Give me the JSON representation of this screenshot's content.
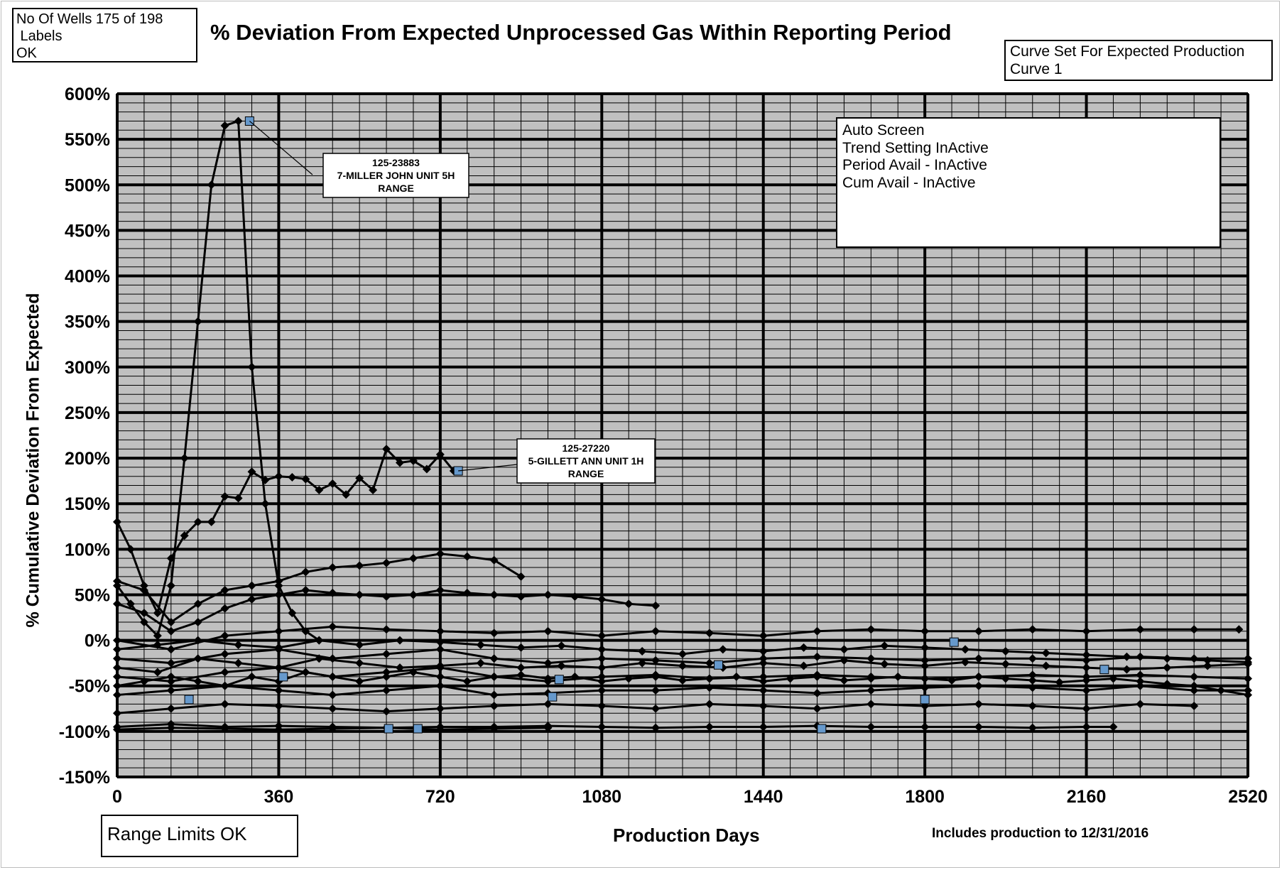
{
  "wells_box": {
    "lines": [
      "No Of Wells 175 of 198",
      " Labels",
      "OK"
    ]
  },
  "curve_box": {
    "lines": [
      "Curve Set For Expected Production",
      "Curve 1"
    ]
  },
  "auto_box": {
    "lines": [
      "Auto Screen",
      "Trend Setting InActive",
      "Period Avail - InActive",
      "",
      "Cum Avail - InActive"
    ]
  },
  "range_box": {
    "text": "Range Limits OK"
  },
  "footnote": "Includes production to 12/31/2016",
  "colors": {
    "plot_background": "#c0c0c0",
    "major_grid": "#000000",
    "minor_grid": "#000000",
    "series_line": "#000000",
    "highlight_marker": "#6699cc"
  },
  "chart_data": {
    "type": "line",
    "title": "% Deviation From Expected Unprocessed Gas Within Reporting Period",
    "xlabel": "Production Days",
    "ylabel": "% Cumulative Deviation From Expected",
    "xlim": [
      0,
      2520
    ],
    "ylim": [
      -150,
      600
    ],
    "x_ticks": [
      "0",
      "360",
      "720",
      "1080",
      "1440",
      "1800",
      "2160",
      "2520"
    ],
    "y_ticks": [
      "600%",
      "550%",
      "500%",
      "450%",
      "400%",
      "350%",
      "300%",
      "250%",
      "200%",
      "150%",
      "100%",
      "50%",
      "0%",
      "-50%",
      "-100%",
      "-150%"
    ],
    "y_tick_values": [
      600,
      550,
      500,
      450,
      400,
      350,
      300,
      250,
      200,
      150,
      100,
      50,
      0,
      -50,
      -100,
      -150
    ],
    "x_tick_values": [
      0,
      360,
      720,
      1080,
      1440,
      1800,
      2160,
      2520
    ],
    "grid": true,
    "marker": "diamond",
    "series": [
      {
        "values_x": [
          0,
          30,
          60,
          90,
          120,
          150,
          180,
          210,
          240,
          270,
          300,
          330,
          360,
          390,
          420,
          450
        ],
        "values_y": [
          60,
          40,
          20,
          5,
          60,
          200,
          350,
          500,
          565,
          570,
          300,
          150,
          60,
          30,
          10,
          0
        ]
      },
      {
        "values_x": [
          0,
          30,
          60,
          90,
          120,
          150,
          180,
          210,
          240,
          270,
          300,
          330,
          360,
          390,
          420,
          450,
          480,
          510,
          540,
          570,
          600,
          630,
          660,
          690,
          720,
          750
        ],
        "values_y": [
          130,
          100,
          60,
          30,
          90,
          115,
          130,
          130,
          158,
          156,
          185,
          176,
          180,
          179,
          177,
          165,
          172,
          160,
          178,
          165,
          210,
          195,
          197,
          188,
          204,
          186
        ]
      },
      {
        "values_x": [
          0,
          60,
          120,
          180,
          240,
          300,
          360,
          420,
          480,
          540,
          600,
          660,
          720,
          780,
          840,
          900
        ],
        "values_y": [
          65,
          55,
          20,
          40,
          55,
          60,
          65,
          75,
          80,
          82,
          85,
          90,
          95,
          92,
          88,
          70
        ]
      },
      {
        "values_x": [
          0,
          60,
          120,
          180,
          240,
          300,
          360,
          420,
          480,
          540,
          600,
          660,
          720,
          780,
          840,
          900,
          960,
          1020,
          1080,
          1140,
          1200
        ],
        "values_y": [
          40,
          30,
          10,
          20,
          35,
          45,
          50,
          55,
          52,
          50,
          48,
          50,
          55,
          52,
          50,
          48,
          50,
          48,
          45,
          40,
          38
        ]
      },
      {
        "values_x": [
          0,
          120,
          240,
          360,
          480,
          600,
          720,
          840,
          960,
          1080,
          1200,
          1320,
          1440,
          1560,
          1680,
          1800,
          1920,
          2040,
          2160,
          2280,
          2400,
          2500
        ],
        "values_y": [
          0,
          -10,
          5,
          10,
          15,
          12,
          10,
          8,
          10,
          5,
          10,
          8,
          5,
          10,
          12,
          10,
          10,
          12,
          10,
          12,
          12,
          12
        ]
      },
      {
        "values_x": [
          0,
          120,
          240,
          360,
          480,
          600,
          720,
          840,
          960,
          1080,
          1200,
          1320,
          1440,
          1560,
          1680,
          1800,
          1920,
          2040,
          2160,
          2280,
          2400,
          2520
        ],
        "values_y": [
          -20,
          -25,
          -15,
          -10,
          -20,
          -15,
          -10,
          -20,
          -25,
          -20,
          -22,
          -25,
          -20,
          -18,
          -20,
          -22,
          -20,
          -20,
          -22,
          -18,
          -20,
          -20
        ]
      },
      {
        "values_x": [
          0,
          120,
          240,
          360,
          480,
          600,
          720,
          840,
          960,
          1080,
          1200,
          1320,
          1440,
          1560,
          1680,
          1800,
          1920,
          2040,
          2160,
          2280,
          2400,
          2520
        ],
        "values_y": [
          -40,
          -45,
          -35,
          -30,
          -40,
          -35,
          -30,
          -40,
          -45,
          -40,
          -38,
          -42,
          -40,
          -38,
          -40,
          -42,
          -40,
          -38,
          -40,
          -38,
          -40,
          -42
        ]
      },
      {
        "values_x": [
          0,
          120,
          240,
          360,
          480,
          600,
          720,
          840,
          960,
          1080,
          1200,
          1320,
          1440,
          1560,
          1680,
          1800,
          1920,
          2040,
          2160,
          2280,
          2400,
          2520
        ],
        "values_y": [
          -60,
          -55,
          -50,
          -55,
          -60,
          -55,
          -50,
          -60,
          -58,
          -55,
          -55,
          -52,
          -55,
          -58,
          -55,
          -52,
          -50,
          -52,
          -55,
          -50,
          -55,
          -55
        ]
      },
      {
        "values_x": [
          0,
          120,
          240,
          360,
          480,
          600,
          720,
          840,
          960,
          1080,
          1200,
          1320,
          1440,
          1560,
          1680,
          1800,
          1920,
          2040,
          2160,
          2280,
          2400
        ],
        "values_y": [
          -80,
          -75,
          -70,
          -72,
          -75,
          -78,
          -75,
          -72,
          -70,
          -72,
          -75,
          -70,
          -72,
          -75,
          -70,
          -72,
          -70,
          -72,
          -75,
          -70,
          -72
        ]
      },
      {
        "values_x": [
          0,
          120,
          240,
          360,
          480,
          600,
          720,
          840,
          960,
          1080,
          1200,
          1320,
          1440,
          1560,
          1680,
          1800,
          1920,
          2040,
          2160,
          2220
        ],
        "values_y": [
          -95,
          -92,
          -95,
          -94,
          -95,
          -96,
          -95,
          -95,
          -94,
          -95,
          -96,
          -95,
          -95,
          -94,
          -95,
          -95,
          -95,
          -96,
          -95,
          -95
        ]
      },
      {
        "values_x": [
          0,
          120,
          240,
          360,
          480,
          600,
          720,
          840,
          960
        ],
        "values_y": [
          -98,
          -96,
          -97,
          -98,
          -97,
          -96,
          -98,
          -97,
          -96
        ]
      },
      {
        "values_x": [
          0,
          90,
          180,
          270,
          360,
          450,
          540,
          630,
          720,
          810,
          900,
          990,
          1080,
          1170,
          1260,
          1350,
          1440,
          1530,
          1620,
          1710,
          1800,
          1890,
          1980,
          2070,
          2160,
          2250,
          2340,
          2430,
          2520
        ],
        "values_y": [
          -30,
          -35,
          -20,
          -25,
          -30,
          -20,
          -25,
          -30,
          -28,
          -25,
          -30,
          -28,
          -30,
          -25,
          -28,
          -30,
          -25,
          -28,
          -22,
          -26,
          -28,
          -24,
          -26,
          -28,
          -30,
          -32,
          -30,
          -28,
          -26
        ]
      },
      {
        "values_x": [
          0,
          90,
          180,
          270,
          360,
          450,
          540,
          630,
          720,
          810,
          900,
          990,
          1080,
          1170,
          1260,
          1350,
          1440,
          1530,
          1620,
          1710,
          1800,
          1890,
          1980,
          2070,
          2160,
          2250,
          2340,
          2430,
          2520
        ],
        "values_y": [
          -10,
          -5,
          0,
          -5,
          -8,
          0,
          -5,
          0,
          -2,
          -5,
          -8,
          -6,
          -10,
          -12,
          -15,
          -10,
          -12,
          -8,
          -10,
          -6,
          -8,
          -10,
          -12,
          -14,
          -16,
          -18,
          -20,
          -22,
          -24
        ]
      },
      {
        "values_x": [
          0,
          60,
          120,
          180,
          240,
          300,
          360,
          420,
          480,
          540,
          600,
          660,
          720,
          780,
          840,
          900,
          960,
          1020,
          1080,
          1140,
          1200,
          1260,
          1320,
          1380,
          1440,
          1500,
          1560,
          1620,
          1680,
          1740,
          1800,
          1860,
          1920,
          1980,
          2040,
          2100,
          2160,
          2220,
          2280,
          2340,
          2400,
          2460,
          2520
        ],
        "values_y": [
          -50,
          -45,
          -40,
          -45,
          -50,
          -40,
          -45,
          -35,
          -40,
          -45,
          -40,
          -35,
          -40,
          -45,
          -40,
          -38,
          -42,
          -40,
          -45,
          -42,
          -40,
          -44,
          -42,
          -40,
          -45,
          -42,
          -40,
          -44,
          -42,
          -40,
          -42,
          -44,
          -40,
          -42,
          -44,
          -46,
          -44,
          -42,
          -45,
          -48,
          -50,
          -55,
          -60
        ]
      }
    ],
    "annotations": [
      {
        "x": 295,
        "y": 570,
        "lines": [
          "125-23883",
          "7-MILLER JOHN UNIT 5H",
          "RANGE"
        ]
      },
      {
        "x": 760,
        "y": 186,
        "lines": [
          "125-27220",
          "5-GILLETT ANN UNIT 1H",
          "RANGE"
        ]
      }
    ],
    "highlight_points": [
      {
        "x": 295,
        "y": 570
      },
      {
        "x": 760,
        "y": 186
      },
      {
        "x": 160,
        "y": -65
      },
      {
        "x": 370,
        "y": -40
      },
      {
        "x": 605,
        "y": -97
      },
      {
        "x": 670,
        "y": -97
      },
      {
        "x": 985,
        "y": -43
      },
      {
        "x": 970,
        "y": -62
      },
      {
        "x": 1340,
        "y": -27
      },
      {
        "x": 1570,
        "y": -97
      },
      {
        "x": 1800,
        "y": -65
      },
      {
        "x": 1865,
        "y": -2
      },
      {
        "x": 2200,
        "y": -32
      }
    ]
  }
}
